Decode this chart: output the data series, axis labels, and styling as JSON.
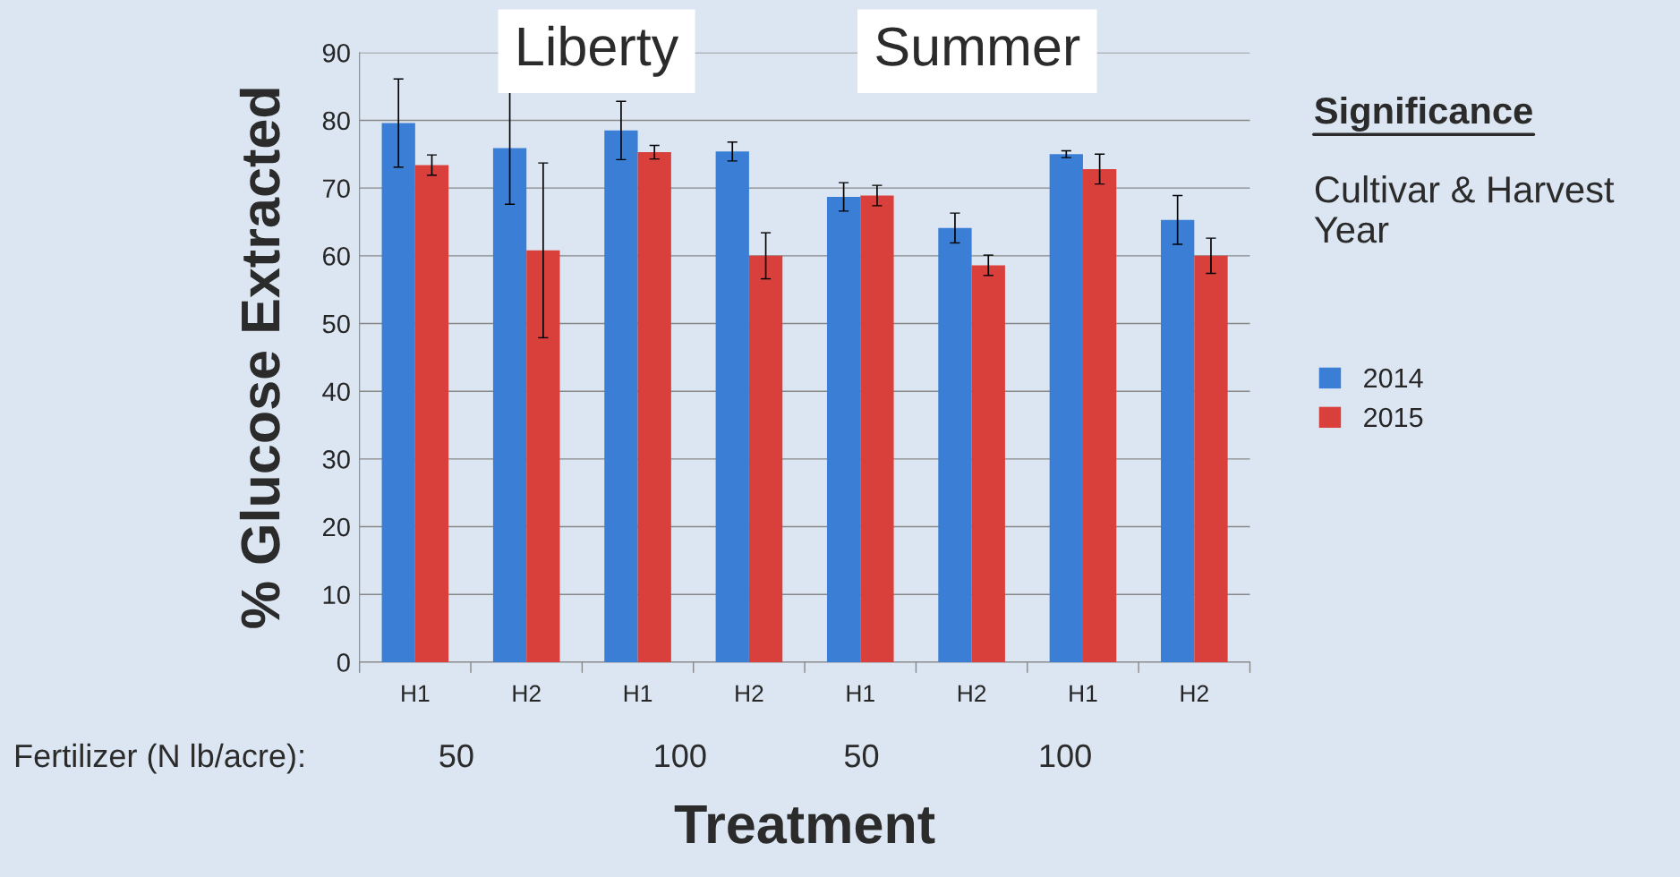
{
  "chart_data": {
    "type": "bar",
    "xlabel": "Treatment",
    "ylabel": "% Glucose Extracted",
    "categories": [
      "H1",
      "H2",
      "H1",
      "H2",
      "H1",
      "H2",
      "H1",
      "H2"
    ],
    "series": [
      {
        "name": "2014",
        "color": "#3a7fd5",
        "values": [
          79.6,
          75.9,
          78.5,
          75.4,
          68.7,
          64.1,
          75.0,
          65.3
        ],
        "errors": [
          6.5,
          8.3,
          4.3,
          1.4,
          2.1,
          2.2,
          0.5,
          3.6
        ]
      },
      {
        "name": "2015",
        "color": "#d9403b",
        "values": [
          73.4,
          60.8,
          75.3,
          60.0,
          68.9,
          58.6,
          72.8,
          60.0
        ],
        "errors": [
          1.5,
          12.9,
          1.0,
          3.4,
          1.5,
          1.5,
          2.2,
          2.6
        ]
      }
    ],
    "ylim": [
      0,
      90
    ],
    "yticks": [
      0,
      10,
      20,
      30,
      40,
      50,
      60,
      70,
      80,
      90
    ],
    "grid": "y",
    "legend": "right",
    "annotations": [
      "Liberty",
      "Summer",
      "Significance",
      "Cultivar & Harvest\nYear",
      "Fertilizer (N lb/acre):",
      "50",
      "100",
      "50",
      "100"
    ]
  }
}
